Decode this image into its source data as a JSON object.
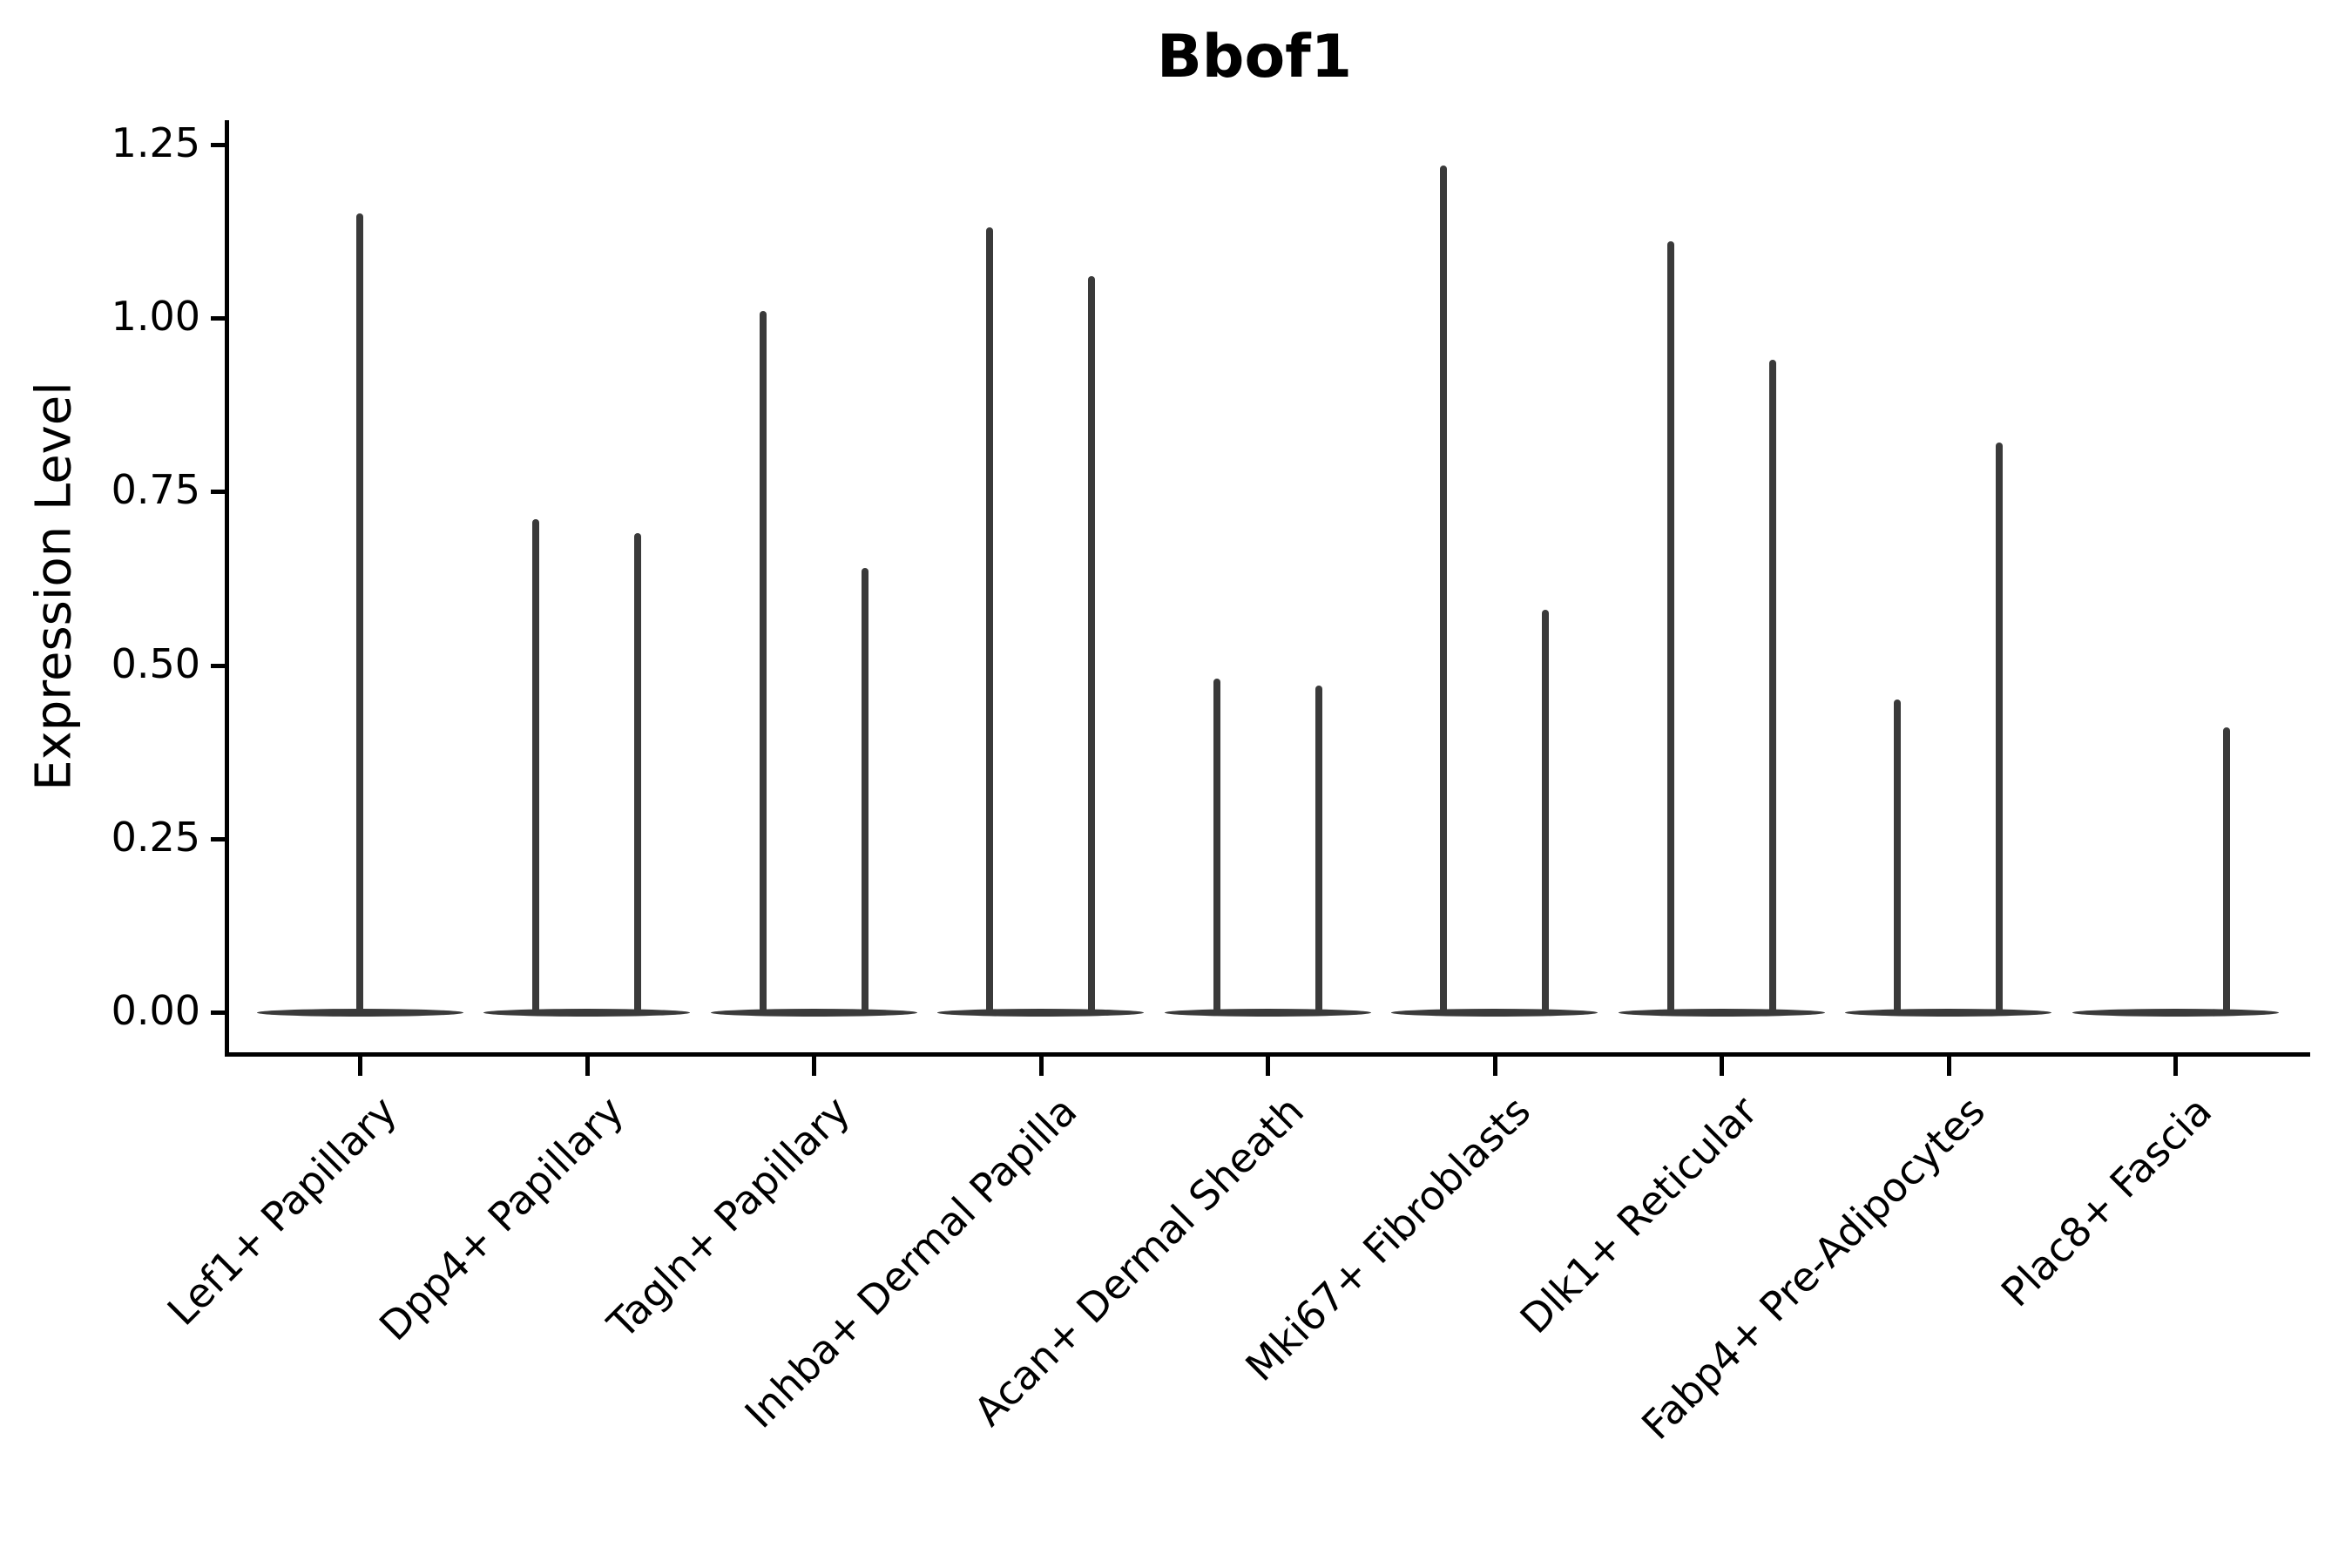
{
  "figure": {
    "title": "Bbof1",
    "y_axis_label": "Expression Level"
  },
  "chart_data": {
    "type": "violin",
    "title": "Bbof1",
    "xlabel": "",
    "ylabel": "Expression Level",
    "ylim": [
      -0.06,
      1.29
    ],
    "yticks": [
      0.0,
      0.25,
      0.5,
      0.75,
      1.0,
      1.25
    ],
    "ytick_labels": [
      "0.00",
      "0.25",
      "0.50",
      "0.75",
      "1.00",
      "1.25"
    ],
    "categories": [
      "Lef1+ Papillary",
      "Dpp4+ Papillary",
      "Tagln+ Papillary",
      "Inhba+ Dermal Papilla",
      "Acan+ Dermal Sheath",
      "Mki67+ Fibroblasts",
      "Dlk1+ Reticular",
      "Fabp4+ Pre-Adipocytes",
      "Plac8+ Fascia"
    ],
    "legend": "none",
    "grid": false,
    "description": "Violin plot of Bbof1 expression per fibroblast cluster; each violin is a flat dense base at 0 with a thin spike rising to the maximum expression value. Categories 2-9 contain two side-by-side violins; category 1 has a single full-width violin.",
    "violins": [
      {
        "category": "Lef1+ Papillary",
        "slot": "full",
        "base_value": 0,
        "peak_max": 1.15
      },
      {
        "category": "Dpp4+ Papillary",
        "slot": "left",
        "base_value": 0,
        "peak_max": 0.71
      },
      {
        "category": "Dpp4+ Papillary",
        "slot": "right",
        "base_value": 0,
        "peak_max": 0.69
      },
      {
        "category": "Tagln+ Papillary",
        "slot": "left",
        "base_value": 0,
        "peak_max": 1.01
      },
      {
        "category": "Tagln+ Papillary",
        "slot": "right",
        "base_value": 0,
        "peak_max": 0.64
      },
      {
        "category": "Inhba+ Dermal Papilla",
        "slot": "left",
        "base_value": 0,
        "peak_max": 1.13
      },
      {
        "category": "Inhba+ Dermal Papilla",
        "slot": "right",
        "base_value": 0,
        "peak_max": 1.06
      },
      {
        "category": "Acan+ Dermal Sheath",
        "slot": "left",
        "base_value": 0,
        "peak_max": 0.48
      },
      {
        "category": "Acan+ Dermal Sheath",
        "slot": "right",
        "base_value": 0,
        "peak_max": 0.47
      },
      {
        "category": "Mki67+ Fibroblasts",
        "slot": "left",
        "base_value": 0,
        "peak_max": 1.22
      },
      {
        "category": "Mki67+ Fibroblasts",
        "slot": "right",
        "base_value": 0,
        "peak_max": 0.58
      },
      {
        "category": "Dlk1+ Reticular",
        "slot": "left",
        "base_value": 0,
        "peak_max": 1.11
      },
      {
        "category": "Dlk1+ Reticular",
        "slot": "right",
        "base_value": 0,
        "peak_max": 0.94
      },
      {
        "category": "Fabp4+ Pre-Adipocytes",
        "slot": "left",
        "base_value": 0,
        "peak_max": 0.45
      },
      {
        "category": "Fabp4+ Pre-Adipocytes",
        "slot": "right",
        "base_value": 0,
        "peak_max": 0.82
      },
      {
        "category": "Plac8+ Fascia",
        "slot": "left",
        "base_value": 0,
        "peak_max": 0.0
      },
      {
        "category": "Plac8+ Fascia",
        "slot": "right",
        "base_value": 0,
        "peak_max": 0.41
      }
    ],
    "colors": {
      "violin": "#3a3a3a",
      "axis": "#000000",
      "text": "#000000",
      "background": "#ffffff"
    }
  }
}
